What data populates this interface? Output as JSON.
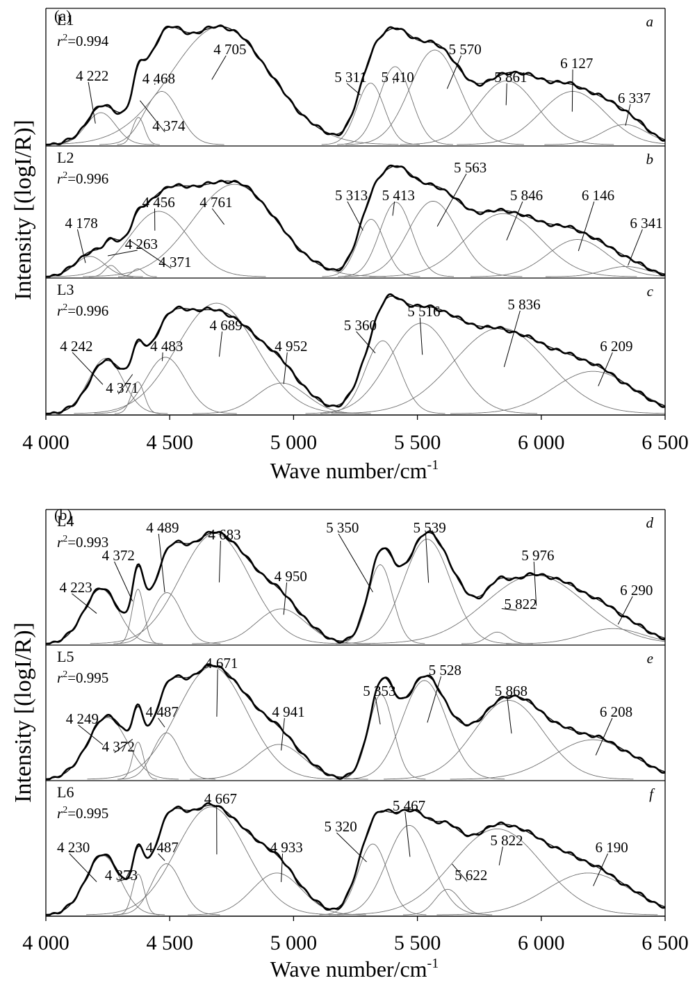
{
  "figure": {
    "ylabel": "Intensity [(logI/R)]",
    "xlabel": "Wave number/cm",
    "xlabel_sup": "-1"
  },
  "chart_data": [
    {
      "type": "line",
      "group": "(a)",
      "xlim": [
        4000,
        6500
      ],
      "xticks": [
        "4 000",
        "4 500",
        "5 000",
        "5 500",
        "6 000",
        "6 500"
      ],
      "xlabel": "Wave number/cm-1",
      "ylabel": "Intensity [(logI/R)]",
      "panels": [
        {
          "id": "a",
          "sample": "L1",
          "r2": "=0.994",
          "peaks": [
            {
              "x": 4222,
              "label": "4 222"
            },
            {
              "x": 4374,
              "label": "4 374"
            },
            {
              "x": 4468,
              "label": "4 468"
            },
            {
              "x": 4705,
              "label": "4 705"
            },
            {
              "x": 5311,
              "label": "5 311"
            },
            {
              "x": 5410,
              "label": "5 410"
            },
            {
              "x": 5570,
              "label": "5 570"
            },
            {
              "x": 5861,
              "label": "5 861"
            },
            {
              "x": 6127,
              "label": "6 127"
            },
            {
              "x": 6337,
              "label": "6 337"
            }
          ]
        },
        {
          "id": "b",
          "sample": "L2",
          "r2": "=0.996",
          "peaks": [
            {
              "x": 4178,
              "label": "4 178"
            },
            {
              "x": 4263,
              "label": "4 263"
            },
            {
              "x": 4371,
              "label": "4 371"
            },
            {
              "x": 4456,
              "label": "4 456"
            },
            {
              "x": 4761,
              "label": "4 761"
            },
            {
              "x": 5313,
              "label": "5 313"
            },
            {
              "x": 5413,
              "label": "5 413"
            },
            {
              "x": 5563,
              "label": "5 563"
            },
            {
              "x": 5846,
              "label": "5 846"
            },
            {
              "x": 6146,
              "label": "6 146"
            },
            {
              "x": 6341,
              "label": "6 341"
            }
          ]
        },
        {
          "id": "c",
          "sample": "L3",
          "r2": "=0.996",
          "peaks": [
            {
              "x": 4242,
              "label": "4 242"
            },
            {
              "x": 4371,
              "label": "4 371"
            },
            {
              "x": 4483,
              "label": "4 483"
            },
            {
              "x": 4689,
              "label": "4 689"
            },
            {
              "x": 4952,
              "label": "4 952"
            },
            {
              "x": 5360,
              "label": "5 360"
            },
            {
              "x": 5516,
              "label": "5 516"
            },
            {
              "x": 5836,
              "label": "5 836"
            },
            {
              "x": 6209,
              "label": "6 209"
            }
          ]
        }
      ]
    },
    {
      "type": "line",
      "group": "(b)",
      "xlim": [
        4000,
        6500
      ],
      "xticks": [
        "4 000",
        "4 500",
        "5 000",
        "5 500",
        "6 000",
        "6 500"
      ],
      "xlabel": "Wave number/cm-1",
      "ylabel": "Intensity [(logI/R)]",
      "panels": [
        {
          "id": "d",
          "sample": "L4",
          "r2": "=0.993",
          "peaks": [
            {
              "x": 4223,
              "label": "4 223"
            },
            {
              "x": 4372,
              "label": "4 372"
            },
            {
              "x": 4489,
              "label": "4 489"
            },
            {
              "x": 4683,
              "label": "4 683"
            },
            {
              "x": 4950,
              "label": "4 950"
            },
            {
              "x": 5350,
              "label": "5 350"
            },
            {
              "x": 5539,
              "label": "5 539"
            },
            {
              "x": 5822,
              "label": "5 822"
            },
            {
              "x": 5976,
              "label": "5 976"
            },
            {
              "x": 6290,
              "label": "6 290"
            }
          ]
        },
        {
          "id": "e",
          "sample": "L5",
          "r2": "=0.995",
          "peaks": [
            {
              "x": 4249,
              "label": "4 249"
            },
            {
              "x": 4372,
              "label": "4 372"
            },
            {
              "x": 4487,
              "label": "4 487"
            },
            {
              "x": 4671,
              "label": "4 671"
            },
            {
              "x": 4941,
              "label": "4 941"
            },
            {
              "x": 5353,
              "label": "5 353"
            },
            {
              "x": 5528,
              "label": "5 528"
            },
            {
              "x": 5868,
              "label": "5 868"
            },
            {
              "x": 6208,
              "label": "6 208"
            }
          ]
        },
        {
          "id": "f",
          "sample": "L6",
          "r2": "=0.995",
          "peaks": [
            {
              "x": 4230,
              "label": "4 230"
            },
            {
              "x": 4373,
              "label": "4 373"
            },
            {
              "x": 4487,
              "label": "4 487"
            },
            {
              "x": 4667,
              "label": "4 667"
            },
            {
              "x": 4933,
              "label": "4 933"
            },
            {
              "x": 5320,
              "label": "5 320"
            },
            {
              "x": 5467,
              "label": "5 467"
            },
            {
              "x": 5622,
              "label": "5 622"
            },
            {
              "x": 5822,
              "label": "5 822"
            },
            {
              "x": 6190,
              "label": "6 190"
            }
          ]
        }
      ]
    }
  ]
}
